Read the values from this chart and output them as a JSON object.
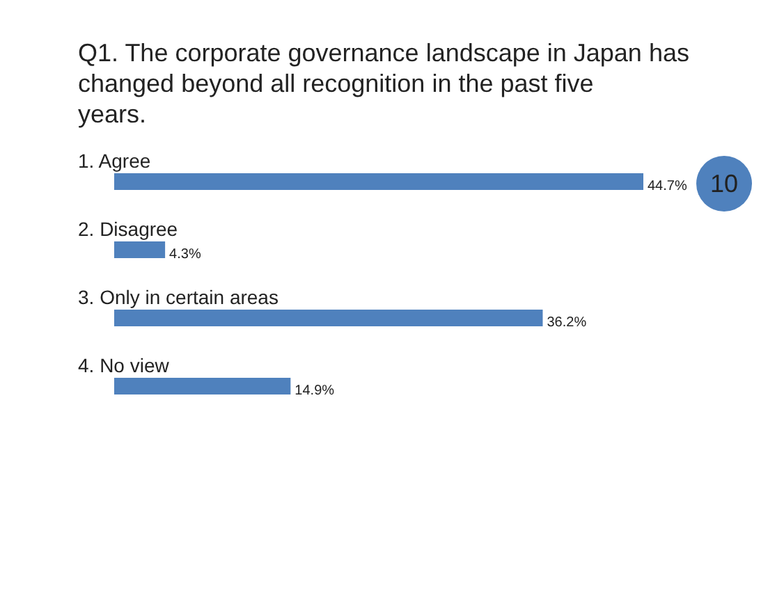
{
  "chart_data": {
    "type": "bar",
    "orientation": "horizontal",
    "title": "Q1. The corporate governance landscape in Japan has changed beyond all recognition in the past five years.",
    "categories": [
      "1. Agree",
      "2. Disagree",
      "3. Only in certain areas",
      "4. No view"
    ],
    "values": [
      44.7,
      4.3,
      36.2,
      14.9
    ],
    "value_labels": [
      "44.7%",
      "4.3%",
      "36.2%",
      "14.9%"
    ],
    "color": "#4f81bd",
    "annotations": [
      "10"
    ]
  }
}
